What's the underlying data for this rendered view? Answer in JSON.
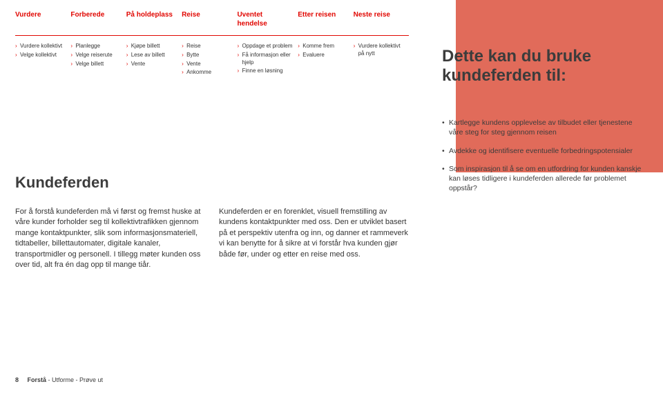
{
  "colors": {
    "accent": "#e10600",
    "band": "#e16b5a",
    "text": "#3c3c3c"
  },
  "journey": {
    "stages": [
      {
        "label": "Vurdere",
        "items": [
          "Vurdere kollektivt",
          "Velge kollektivt"
        ]
      },
      {
        "label": "Forberede",
        "items": [
          "Planlegge",
          "Velge reise­rute",
          "Velge billett"
        ]
      },
      {
        "label": "På holdeplass",
        "items": [
          "Kjøpe billett",
          "Lese av billett",
          "Vente"
        ]
      },
      {
        "label": "Reise",
        "items": [
          "Reise",
          "Bytte",
          "Vente",
          "Ankomme"
        ]
      },
      {
        "label": "Uventet hendelse",
        "items": [
          "Oppdage et problem",
          "Få informa­sjon eller hjelp",
          "Finne en løsning"
        ]
      },
      {
        "label": "Etter reisen",
        "items": [
          "Komme frem",
          "Evaluere"
        ]
      },
      {
        "label": "Neste reise",
        "items": [
          "Vurdere kollektivt på nytt"
        ]
      }
    ]
  },
  "callout": {
    "title": "Dette kan du bruke kundeferden til:",
    "bullets": [
      "Kartlegge kundens opplevelse av tilbudet eller tjenestene våre steg for steg gjennom reisen",
      "Avdekke og identifisere eventuelle forbedringspotensialer",
      "Som inspirasjon til å se om en utfordring for kunden kanskje kan løses tidligere i kundeferden allerede før problemet oppstår?"
    ]
  },
  "body": {
    "title": "Kundeferden",
    "col1": "For å forstå kundeferden må vi først og fremst huske at våre kunder forholder seg til kollektivtrafikken gjennom mange kon­taktpunkter, slik som informasjonsmate­riell, tidtabeller, billettautomater, digitale kanaler, transportmidler og personell. I tillegg møter kunden oss over tid, alt fra én dag opp til mange tiår.",
    "col2": "Kundeferden er en forenklet, visuell frem­stilling av kundens kontaktpunkter med oss. Den er utviklet basert på et perspektiv utenfra og inn, og danner et rammeverk vi kan benytte for å sikre at vi forstår hva kunden gjør både før, under og etter en reise med oss."
  },
  "footer": {
    "page": "8",
    "strong": "Forstå",
    "rest": " - Utforme - Prøve ut"
  }
}
